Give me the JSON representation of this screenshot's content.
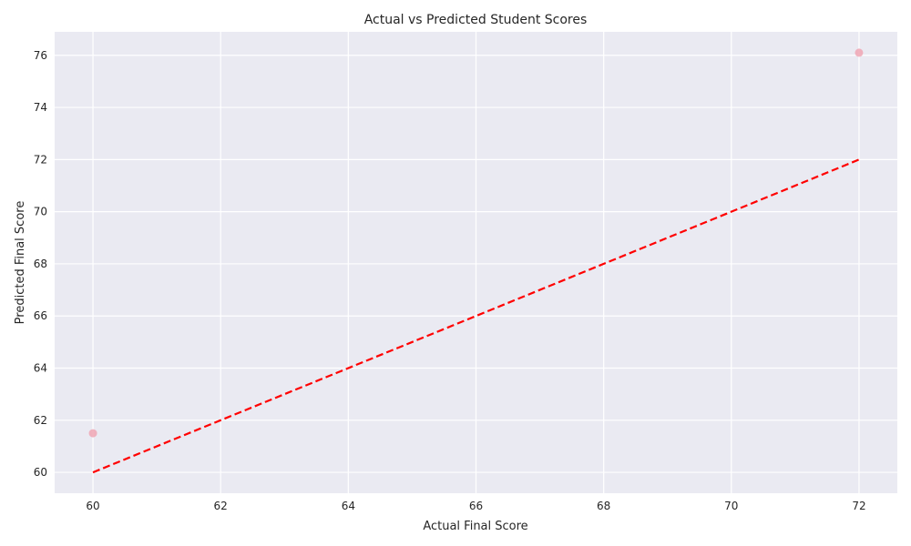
{
  "chart_data": {
    "type": "scatter",
    "title": "Actual vs Predicted Student Scores",
    "xlabel": "Actual Final Score",
    "ylabel": "Predicted Final Score",
    "xlim": [
      59.4,
      72.6
    ],
    "ylim": [
      59.2,
      76.9
    ],
    "xticks": [
      60,
      62,
      64,
      66,
      68,
      70,
      72
    ],
    "yticks": [
      60,
      62,
      64,
      66,
      68,
      70,
      72,
      74,
      76
    ],
    "grid": true,
    "series": [
      {
        "type": "scatter",
        "x": [
          60,
          72
        ],
        "y": [
          61.5,
          76.1
        ],
        "color": "#f0a6b4"
      },
      {
        "type": "line",
        "style": "dashed",
        "x": [
          60,
          72
        ],
        "y": [
          60,
          72
        ],
        "color": "#ff0000"
      }
    ],
    "background_color": "#eaeaf2",
    "grid_color": "#ffffff"
  }
}
